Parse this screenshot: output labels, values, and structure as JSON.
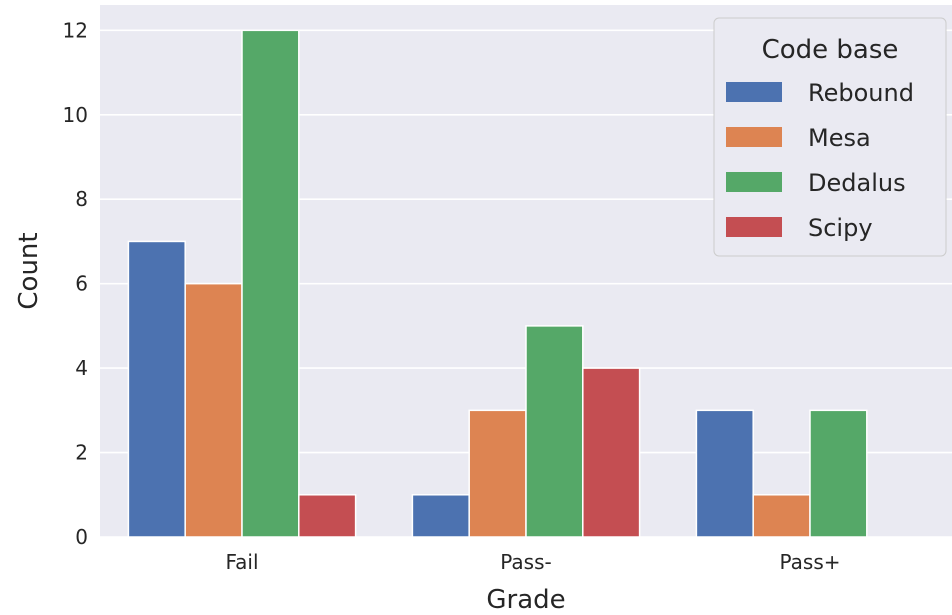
{
  "chart_data": {
    "type": "bar",
    "categories": [
      "Fail",
      "Pass-",
      "Pass+"
    ],
    "series": [
      {
        "name": "Rebound",
        "values": [
          7,
          1,
          3
        ]
      },
      {
        "name": "Mesa",
        "values": [
          6,
          3,
          1
        ]
      },
      {
        "name": "Dedalus",
        "values": [
          12,
          5,
          3
        ]
      },
      {
        "name": "Scipy",
        "values": [
          1,
          4,
          0
        ]
      }
    ],
    "xlabel": "Grade",
    "ylabel": "Count",
    "ylim": [
      0,
      12.6
    ],
    "yticks": [
      0,
      2,
      4,
      6,
      8,
      10,
      12
    ],
    "grid": true,
    "legend": {
      "title": "Code base",
      "placement": "top-right"
    },
    "colors": [
      "#4c72b0",
      "#dd8452",
      "#55a868",
      "#c44e52"
    ],
    "background": "#eaeaf2"
  }
}
